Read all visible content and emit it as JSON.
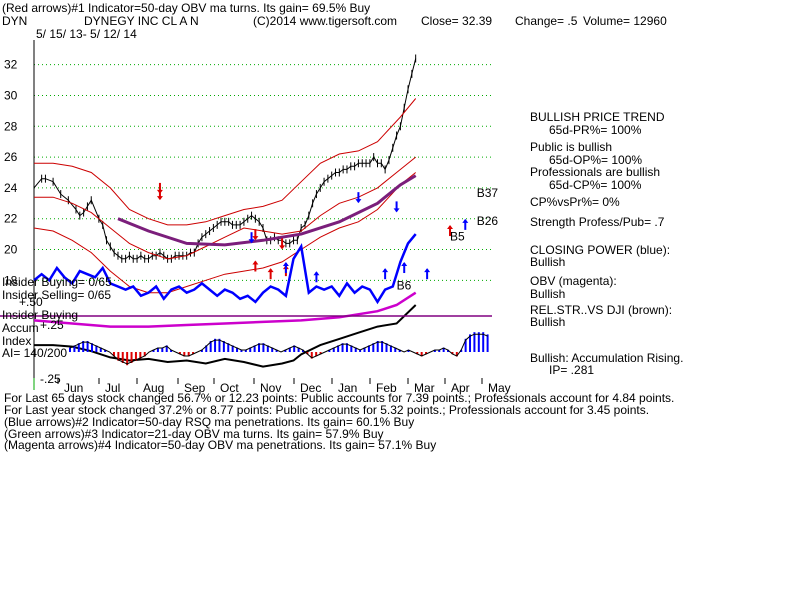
{
  "header": {
    "line1": "(Red arrows)#1 Indicator=50-day OBV ma turns. Its gain= 69.5% Buy",
    "symbol": "DYN",
    "company": "DYNEGY INC CL A N",
    "copyright": "(C)2014 www.tigersoft.com",
    "close": "Close=  32.39",
    "change": "Change= .5",
    "volume": "Volume= 12960",
    "dates": "5/ 15/ 13-  5/ 12/ 14"
  },
  "chart_data": {
    "type": "line",
    "xlabel": "",
    "ylabel": "",
    "ylim": [
      16.4,
      33.6
    ],
    "yticks": [
      18,
      20,
      22,
      24,
      26,
      28,
      30,
      32
    ],
    "months": [
      "Jun",
      "Jul",
      "Aug",
      "Sep",
      "Oct",
      "Nov",
      "Dec",
      "Jan",
      "Feb",
      "Mar",
      "Apr",
      "May"
    ],
    "grid": true,
    "series": [
      {
        "key": "price",
        "color": "#000000",
        "x": [
          0,
          2,
          3,
          5,
          7,
          9,
          11,
          12,
          13,
          14,
          15,
          17,
          18,
          19,
          20,
          21,
          22,
          23,
          24,
          25,
          26,
          27,
          28,
          29,
          30,
          31,
          32,
          33,
          34,
          35,
          36,
          37,
          38,
          39,
          40,
          41,
          42,
          43,
          44,
          45,
          46,
          47,
          48,
          49,
          50,
          51,
          52,
          53,
          54,
          55,
          56,
          57,
          58,
          59,
          60,
          61,
          62,
          63,
          64,
          65,
          66,
          67,
          68,
          69,
          70,
          71,
          72,
          73,
          74,
          75,
          76,
          77,
          78,
          79,
          80,
          81,
          82,
          83,
          84,
          85,
          86,
          87,
          88,
          89,
          90,
          91,
          92,
          93,
          94,
          95,
          96,
          97,
          98,
          99,
          100
        ],
        "y": [
          24.0,
          24.6,
          24.6,
          24.4,
          23.6,
          23.2,
          22.6,
          22.2,
          22.4,
          22.8,
          23.2,
          22.0,
          21.6,
          20.6,
          20.2,
          19.8,
          19.6,
          19.4,
          19.4,
          19.6,
          19.4,
          19.4,
          19.6,
          19.4,
          19.4,
          19.6,
          19.6,
          19.8,
          19.6,
          19.4,
          19.4,
          19.6,
          19.6,
          19.6,
          19.6,
          19.8,
          19.8,
          20.4,
          20.8,
          21.0,
          21.2,
          21.4,
          21.6,
          21.8,
          21.8,
          21.8,
          21.6,
          21.6,
          21.6,
          21.8,
          22.0,
          22.2,
          22.0,
          21.8,
          21.4,
          20.6,
          20.6,
          20.8,
          20.6,
          20.6,
          20.4,
          20.4,
          20.6,
          20.6,
          21.4,
          21.6,
          22.2,
          23.0,
          23.6,
          24.0,
          24.4,
          24.6,
          24.8,
          25.0,
          25.0,
          25.2,
          25.2,
          25.4,
          25.4,
          25.6,
          25.6,
          25.6,
          25.6,
          26.0,
          25.6,
          25.6,
          25.2,
          25.8,
          26.6,
          27.4,
          28.0,
          29.2,
          30.4,
          31.4,
          32.4
        ]
      },
      {
        "key": "upper_band",
        "color": "#cc0000",
        "x": [
          0,
          5,
          10,
          15,
          20,
          25,
          30,
          35,
          40,
          45,
          50,
          55,
          60,
          65,
          70,
          75,
          80,
          85,
          90,
          93,
          96,
          100
        ],
        "y": [
          25.6,
          25.6,
          25.4,
          25.0,
          24.0,
          22.6,
          22.0,
          21.6,
          21.6,
          21.8,
          22.2,
          22.6,
          22.8,
          23.2,
          24.4,
          25.6,
          26.2,
          26.4,
          27.0,
          27.8,
          28.6,
          29.8
        ]
      },
      {
        "key": "lower_band",
        "color": "#cc0000",
        "x": [
          0,
          5,
          10,
          15,
          20,
          25,
          30,
          35,
          40,
          45,
          50,
          55,
          60,
          65,
          70,
          75,
          80,
          85,
          90,
          93,
          96,
          100
        ],
        "y": [
          21.4,
          21.2,
          20.6,
          19.8,
          18.6,
          17.6,
          17.2,
          17.2,
          17.6,
          18.0,
          18.4,
          18.6,
          18.8,
          19.2,
          20.0,
          20.8,
          21.4,
          21.8,
          22.6,
          23.4,
          24.2,
          25.0
        ]
      },
      {
        "key": "ma",
        "color": "#cc0000",
        "x": [
          0,
          5,
          10,
          15,
          20,
          25,
          30,
          35,
          40,
          45,
          50,
          55,
          60,
          65,
          70,
          75,
          80,
          85,
          90,
          95,
          100
        ],
        "y": [
          23.4,
          23.4,
          23.0,
          22.4,
          21.4,
          20.4,
          19.8,
          19.4,
          19.6,
          20.2,
          20.8,
          21.4,
          21.2,
          21.0,
          21.2,
          22.2,
          23.0,
          23.4,
          24.0,
          25.0,
          26.0
        ]
      },
      {
        "key": "trend",
        "color": "#7b1e7b",
        "x": [
          22,
          30,
          40,
          50,
          60,
          70,
          80,
          90,
          96,
          100
        ],
        "y": [
          22.0,
          21.2,
          20.4,
          20.3,
          20.6,
          21.0,
          21.8,
          23.0,
          24.2,
          24.8
        ]
      },
      {
        "key": "closing_power",
        "color": "#0000ff",
        "x": [
          0,
          2,
          4,
          6,
          8,
          10,
          12,
          14,
          16,
          18,
          20,
          22,
          24,
          26,
          28,
          30,
          32,
          34,
          36,
          38,
          40,
          42,
          44,
          46,
          48,
          50,
          52,
          54,
          56,
          58,
          60,
          62,
          64,
          66,
          68,
          70,
          72,
          74,
          76,
          78,
          80,
          82,
          84,
          86,
          88,
          90,
          92,
          94,
          96,
          98,
          100
        ],
        "y": [
          18.0,
          18.4,
          18.0,
          18.8,
          18.2,
          17.8,
          18.6,
          18.4,
          18.2,
          18.8,
          17.8,
          17.6,
          17.4,
          17.6,
          17.0,
          17.2,
          17.6,
          16.8,
          17.4,
          17.6,
          17.2,
          17.4,
          17.8,
          17.4,
          17.0,
          17.4,
          17.2,
          16.8,
          17.0,
          16.6,
          17.2,
          17.6,
          17.4,
          17.0,
          19.4,
          20.2,
          17.2,
          17.6,
          17.4,
          17.6,
          17.0,
          17.8,
          17.2,
          17.6,
          17.4,
          16.6,
          17.4,
          17.6,
          19.2,
          20.4,
          21.0
        ]
      }
    ],
    "indicator_lines": {
      "obv_magenta": {
        "color": "#cc00cc",
        "x": [
          0,
          10,
          20,
          30,
          40,
          50,
          60,
          70,
          80,
          90,
          95,
          100
        ],
        "y": [
          15.4,
          15.2,
          15.0,
          15.0,
          15.1,
          15.2,
          15.3,
          15.4,
          15.6,
          16.0,
          16.4,
          17.2
        ]
      },
      "relstr_black": {
        "color": "#000000",
        "x": [
          0,
          5,
          10,
          15,
          20,
          25,
          30,
          35,
          40,
          45,
          50,
          55,
          60,
          65,
          68,
          70,
          75,
          80,
          85,
          90,
          95,
          100
        ],
        "y": [
          13.8,
          13.8,
          13.7,
          13.4,
          13.0,
          12.8,
          12.9,
          12.7,
          12.8,
          12.6,
          12.9,
          12.7,
          12.4,
          12.6,
          12.8,
          13.2,
          13.8,
          14.2,
          14.6,
          15.0,
          15.2,
          16.4
        ]
      }
    },
    "accumulation_index": {
      "zero_value": 0,
      "values": [
        0.04,
        0.06,
        0.08,
        0.1,
        0.1,
        0.08,
        0.06,
        0.04,
        0.02,
        0.0,
        -0.04,
        -0.08,
        -0.1,
        -0.12,
        -0.1,
        -0.08,
        -0.06,
        -0.04,
        0.0,
        0.02,
        0.04,
        0.04,
        0.06,
        0.02,
        0.0,
        -0.02,
        -0.04,
        -0.04,
        -0.02,
        0.0,
        0.02,
        0.06,
        0.1,
        0.12,
        0.12,
        0.1,
        0.08,
        0.06,
        0.04,
        0.02,
        0.02,
        0.04,
        0.06,
        0.08,
        0.08,
        0.06,
        0.04,
        0.02,
        0.0,
        0.02,
        0.04,
        0.06,
        0.04,
        0.02,
        -0.02,
        -0.06,
        -0.04,
        -0.02,
        0.0,
        0.02,
        0.04,
        0.06,
        0.08,
        0.08,
        0.06,
        0.04,
        0.02,
        0.04,
        0.06,
        0.08,
        0.1,
        0.1,
        0.08,
        0.06,
        0.04,
        0.02,
        0.0,
        0.02,
        0.0,
        -0.02,
        -0.04,
        -0.02,
        0.0,
        0.02,
        0.02,
        0.04,
        0.02,
        -0.02,
        -0.04,
        0.02,
        0.12,
        0.16,
        0.18,
        0.18,
        0.18,
        0.16
      ],
      "plus_label": "+.25",
      "minus_label": "-.25",
      "plus50_label": "+.50"
    },
    "arrows": [
      {
        "x": 33,
        "y": 24.0,
        "dir": "down",
        "color": "#dd0000"
      },
      {
        "x": 33,
        "y": 23.6,
        "dir": "down",
        "color": "#dd0000"
      },
      {
        "x": 58,
        "y": 21.0,
        "dir": "down",
        "color": "#dd0000"
      },
      {
        "x": 65,
        "y": 20.4,
        "dir": "down",
        "color": "#dd0000"
      },
      {
        "x": 57,
        "y": 20.8,
        "dir": "down",
        "color": "#0000ff"
      },
      {
        "x": 85,
        "y": 23.4,
        "dir": "down",
        "color": "#0000ff"
      },
      {
        "x": 95,
        "y": 22.8,
        "dir": "down",
        "color": "#0000ff"
      },
      {
        "x": 62,
        "y": 18.4,
        "dir": "up",
        "color": "#dd0000"
      },
      {
        "x": 66,
        "y": 18.6,
        "dir": "up",
        "color": "#dd0000"
      },
      {
        "x": 58,
        "y": 18.9,
        "dir": "up",
        "color": "#dd0000"
      },
      {
        "x": 66,
        "y": 18.8,
        "dir": "up",
        "color": "#0000ff"
      },
      {
        "x": 74,
        "y": 18.2,
        "dir": "up",
        "color": "#0000ff"
      },
      {
        "x": 92,
        "y": 18.4,
        "dir": "up",
        "color": "#0000ff"
      },
      {
        "x": 97,
        "y": 18.8,
        "dir": "up",
        "color": "#0000ff"
      },
      {
        "x": 103,
        "y": 18.4,
        "dir": "up",
        "color": "#0000ff"
      },
      {
        "x": 109,
        "y": 21.2,
        "dir": "up",
        "color": "#dd0000"
      },
      {
        "x": 113,
        "y": 21.6,
        "dir": "up",
        "color": "#0000ff"
      }
    ],
    "signals": [
      {
        "label": "B37",
        "x": 116,
        "y": 23.4
      },
      {
        "label": "B5",
        "x": 109,
        "y": 20.6
      },
      {
        "label": "B26",
        "x": 116,
        "y": 21.6
      },
      {
        "label": "B6",
        "x": 95,
        "y": 17.4
      }
    ]
  },
  "panel_labels": {
    "insider_buying": "Insider Buying= 0/65",
    "insider_selling": "Insider Selling= 0/65",
    "insider_buying2": "Insider Buying",
    "accum": "Accum",
    "index": "Index",
    "ai": "AI= 140/200"
  },
  "right_panel": [
    {
      "text": "BULLISH PRICE TREND"
    },
    {
      "text": "65d-PR%= 100%"
    },
    {
      "text": "Public is bullish"
    },
    {
      "text": "65d-OP%= 100%"
    },
    {
      "text": "Professionals are bullish"
    },
    {
      "text": "65d-CP%= 100%"
    },
    {
      "text": "CP%vsPr%=  0%"
    },
    {
      "text": "Strength Profess/Pub= .7"
    },
    {
      "text": "CLOSING POWER (blue):"
    },
    {
      "text": "Bullish"
    },
    {
      "text": "OBV (magenta):"
    },
    {
      "text": "Bullish"
    },
    {
      "text": "REL.STR..VS DJI (brown):"
    },
    {
      "text": "Bullish"
    },
    {
      "text": "Bullish: Accumulation Rising."
    },
    {
      "text": "IP=  .281"
    }
  ],
  "footer": [
    "For Last 65 days stock changed  56.7% or  12.23 points:  Public accounts for  7.39 points.;  Professionals account for  4.84 points.",
    "For Last year stock changed  37.2% or  8.77 points:  Public accounts for  5.32 points.;  Professionals account for  3.45 points.",
    "(Blue arrows)#2 Indicator=50-day RSQ ma penetrations. Its gain= 60.1% Buy",
    "(Green arrows)#3 Indicator=21-day OBV ma turns. Its gain= 57.9% Buy",
    "(Magenta arrows)#4 Indicator=50-day OBV ma penetrations. Its gain= 57.1% Buy"
  ]
}
